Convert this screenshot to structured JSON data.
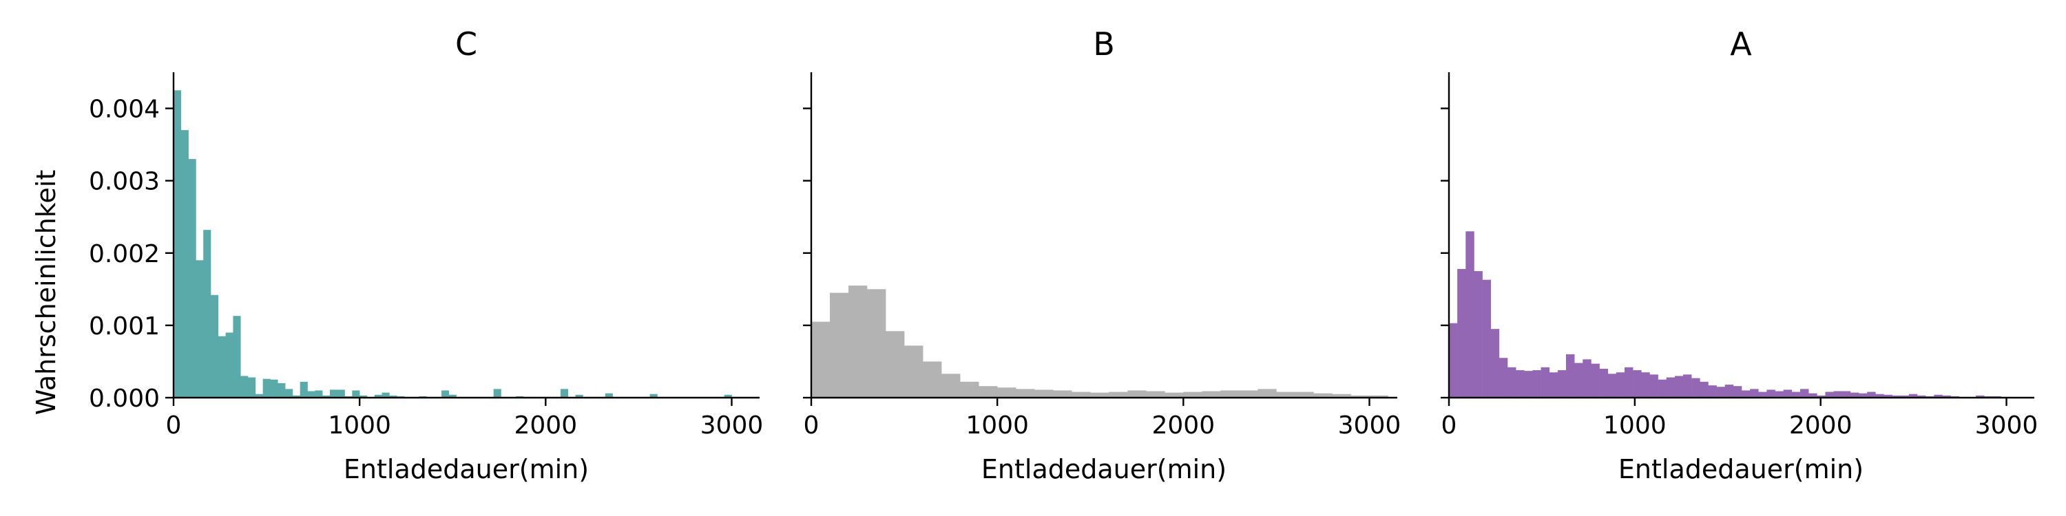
{
  "chart_data": [
    {
      "type": "bar",
      "title": "C",
      "xlabel": "Entladedauer(min)",
      "ylabel": "Wahrscheinlichkeit",
      "color": "#5aaaa9",
      "xlim": [
        0,
        3150
      ],
      "ylim": [
        0,
        0.0045
      ],
      "xticks": [
        "0",
        "1000",
        "2000",
        "3000"
      ],
      "yticks": [
        "0.000",
        "0.001",
        "0.002",
        "0.003",
        "0.004"
      ],
      "bin_edges_start": 0,
      "bin_width": 40,
      "values": [
        0.00425,
        0.0037,
        0.0033,
        0.0019,
        0.00232,
        0.00142,
        0.00085,
        0.0009,
        0.00113,
        0.0003,
        0.00028,
        5e-05,
        0.00026,
        0.00025,
        0.0002,
        0.00012,
        3e-05,
        0.00022,
        9e-05,
        0.0001,
        3e-05,
        0.00011,
        0.00011,
        2e-05,
        0.0001,
        3e-05,
        1e-05,
        4e-05,
        7e-05,
        3e-05,
        2e-05,
        1e-05,
        1e-05,
        2e-05,
        1e-05,
        1e-05,
        0.0001,
        4e-05,
        1e-05,
        1e-05,
        1e-05,
        1e-05,
        1e-05,
        0.00012,
        1e-05,
        1e-05,
        2e-05,
        1e-05,
        1e-05,
        1e-05,
        1e-05,
        1e-05,
        0.00012,
        1e-05,
        4e-05,
        1e-05,
        1e-05,
        1e-05,
        6e-05,
        1e-05,
        1e-05,
        1e-05,
        1e-05,
        1e-05,
        5e-05,
        1e-05,
        1e-05,
        1e-05,
        1e-05,
        1e-05,
        1e-05,
        1e-05,
        1e-05,
        1e-05,
        4e-05,
        1e-05,
        1e-05,
        1e-05
      ]
    },
    {
      "type": "bar",
      "title": "B",
      "xlabel": "Entladedauer(min)",
      "ylabel": "",
      "color": "#b3b3b3",
      "xlim": [
        0,
        3150
      ],
      "ylim": [
        0,
        0.0045
      ],
      "xticks": [
        "0",
        "1000",
        "2000",
        "3000"
      ],
      "yticks": [],
      "bin_edges_start": 0,
      "bin_width": 100,
      "values": [
        0.00105,
        0.00145,
        0.00155,
        0.0015,
        0.00092,
        0.00072,
        0.0005,
        0.00033,
        0.00022,
        0.00016,
        0.00014,
        0.00012,
        0.00011,
        0.0001,
        8e-05,
        7e-05,
        8e-05,
        0.0001,
        9e-05,
        7e-05,
        8e-05,
        9e-05,
        0.0001,
        0.0001,
        0.00012,
        8e-05,
        8e-05,
        6e-05,
        5e-05,
        3e-05,
        3e-05
      ]
    },
    {
      "type": "bar",
      "title": "A",
      "xlabel": "Entladedauer(min)",
      "ylabel": "",
      "color": "#9467b4",
      "xlim": [
        0,
        3150
      ],
      "ylim": [
        0,
        0.0045
      ],
      "xticks": [
        "0",
        "1000",
        "2000",
        "3000"
      ],
      "yticks": [],
      "bin_edges_start": 0,
      "bin_width": 45,
      "values": [
        0.00103,
        0.00178,
        0.0023,
        0.00175,
        0.00163,
        0.00095,
        0.00055,
        0.00042,
        0.00038,
        0.00037,
        0.00038,
        0.00042,
        0.00035,
        0.00038,
        0.0006,
        0.00048,
        0.00053,
        0.00047,
        0.0004,
        0.00033,
        0.00035,
        0.00042,
        0.00038,
        0.00035,
        0.00032,
        0.00025,
        0.00028,
        0.0003,
        0.00032,
        0.00027,
        0.00022,
        0.00017,
        0.00015,
        0.00018,
        0.00016,
        0.0001,
        0.00012,
        8e-05,
        0.00011,
        9e-05,
        0.00011,
        8e-05,
        0.00012,
        6e-05,
        3e-05,
        8e-05,
        9e-05,
        9e-05,
        7e-05,
        6e-05,
        8e-05,
        5e-05,
        4e-05,
        3e-05,
        3e-05,
        5e-05,
        3e-05,
        2e-05,
        4e-05,
        3e-05,
        2e-05,
        1e-05,
        1e-05,
        3e-05,
        2e-05,
        2e-05
      ]
    }
  ]
}
